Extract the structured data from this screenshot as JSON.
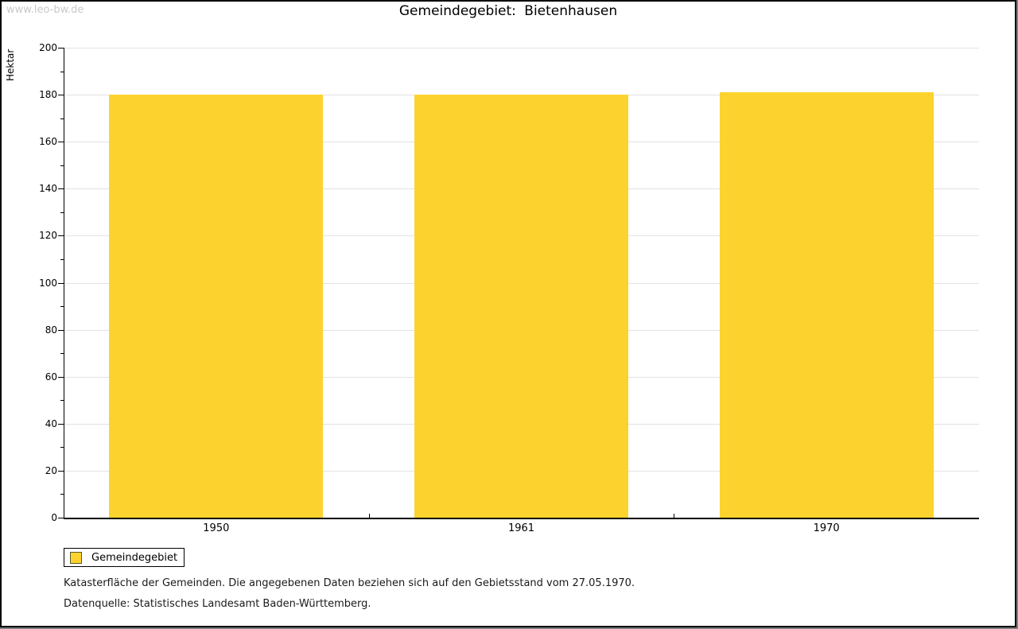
{
  "watermark": "www.leo-bw.de",
  "chart_data": {
    "type": "bar",
    "title": "Gemeindegebiet: Bietenhausen",
    "ylabel": "Hektar",
    "categories": [
      "1950",
      "1961",
      "1970"
    ],
    "values": [
      180,
      180,
      181
    ],
    "ylim": [
      0,
      200
    ],
    "ytick_step": 20,
    "yminor_step": 10,
    "grid": true,
    "legend_position": "bottom-left",
    "bar_color": "#fcd32e",
    "gridline_color": "#e2e2e2"
  },
  "legend": {
    "label": "Gemeindegebiet"
  },
  "footer": {
    "line1": "Katasterfläche der Gemeinden. Die angegebenen Daten beziehen sich auf den Gebietsstand vom 27.05.1970.",
    "line2": "Datenquelle: Statistisches Landesamt Baden-Württemberg."
  }
}
